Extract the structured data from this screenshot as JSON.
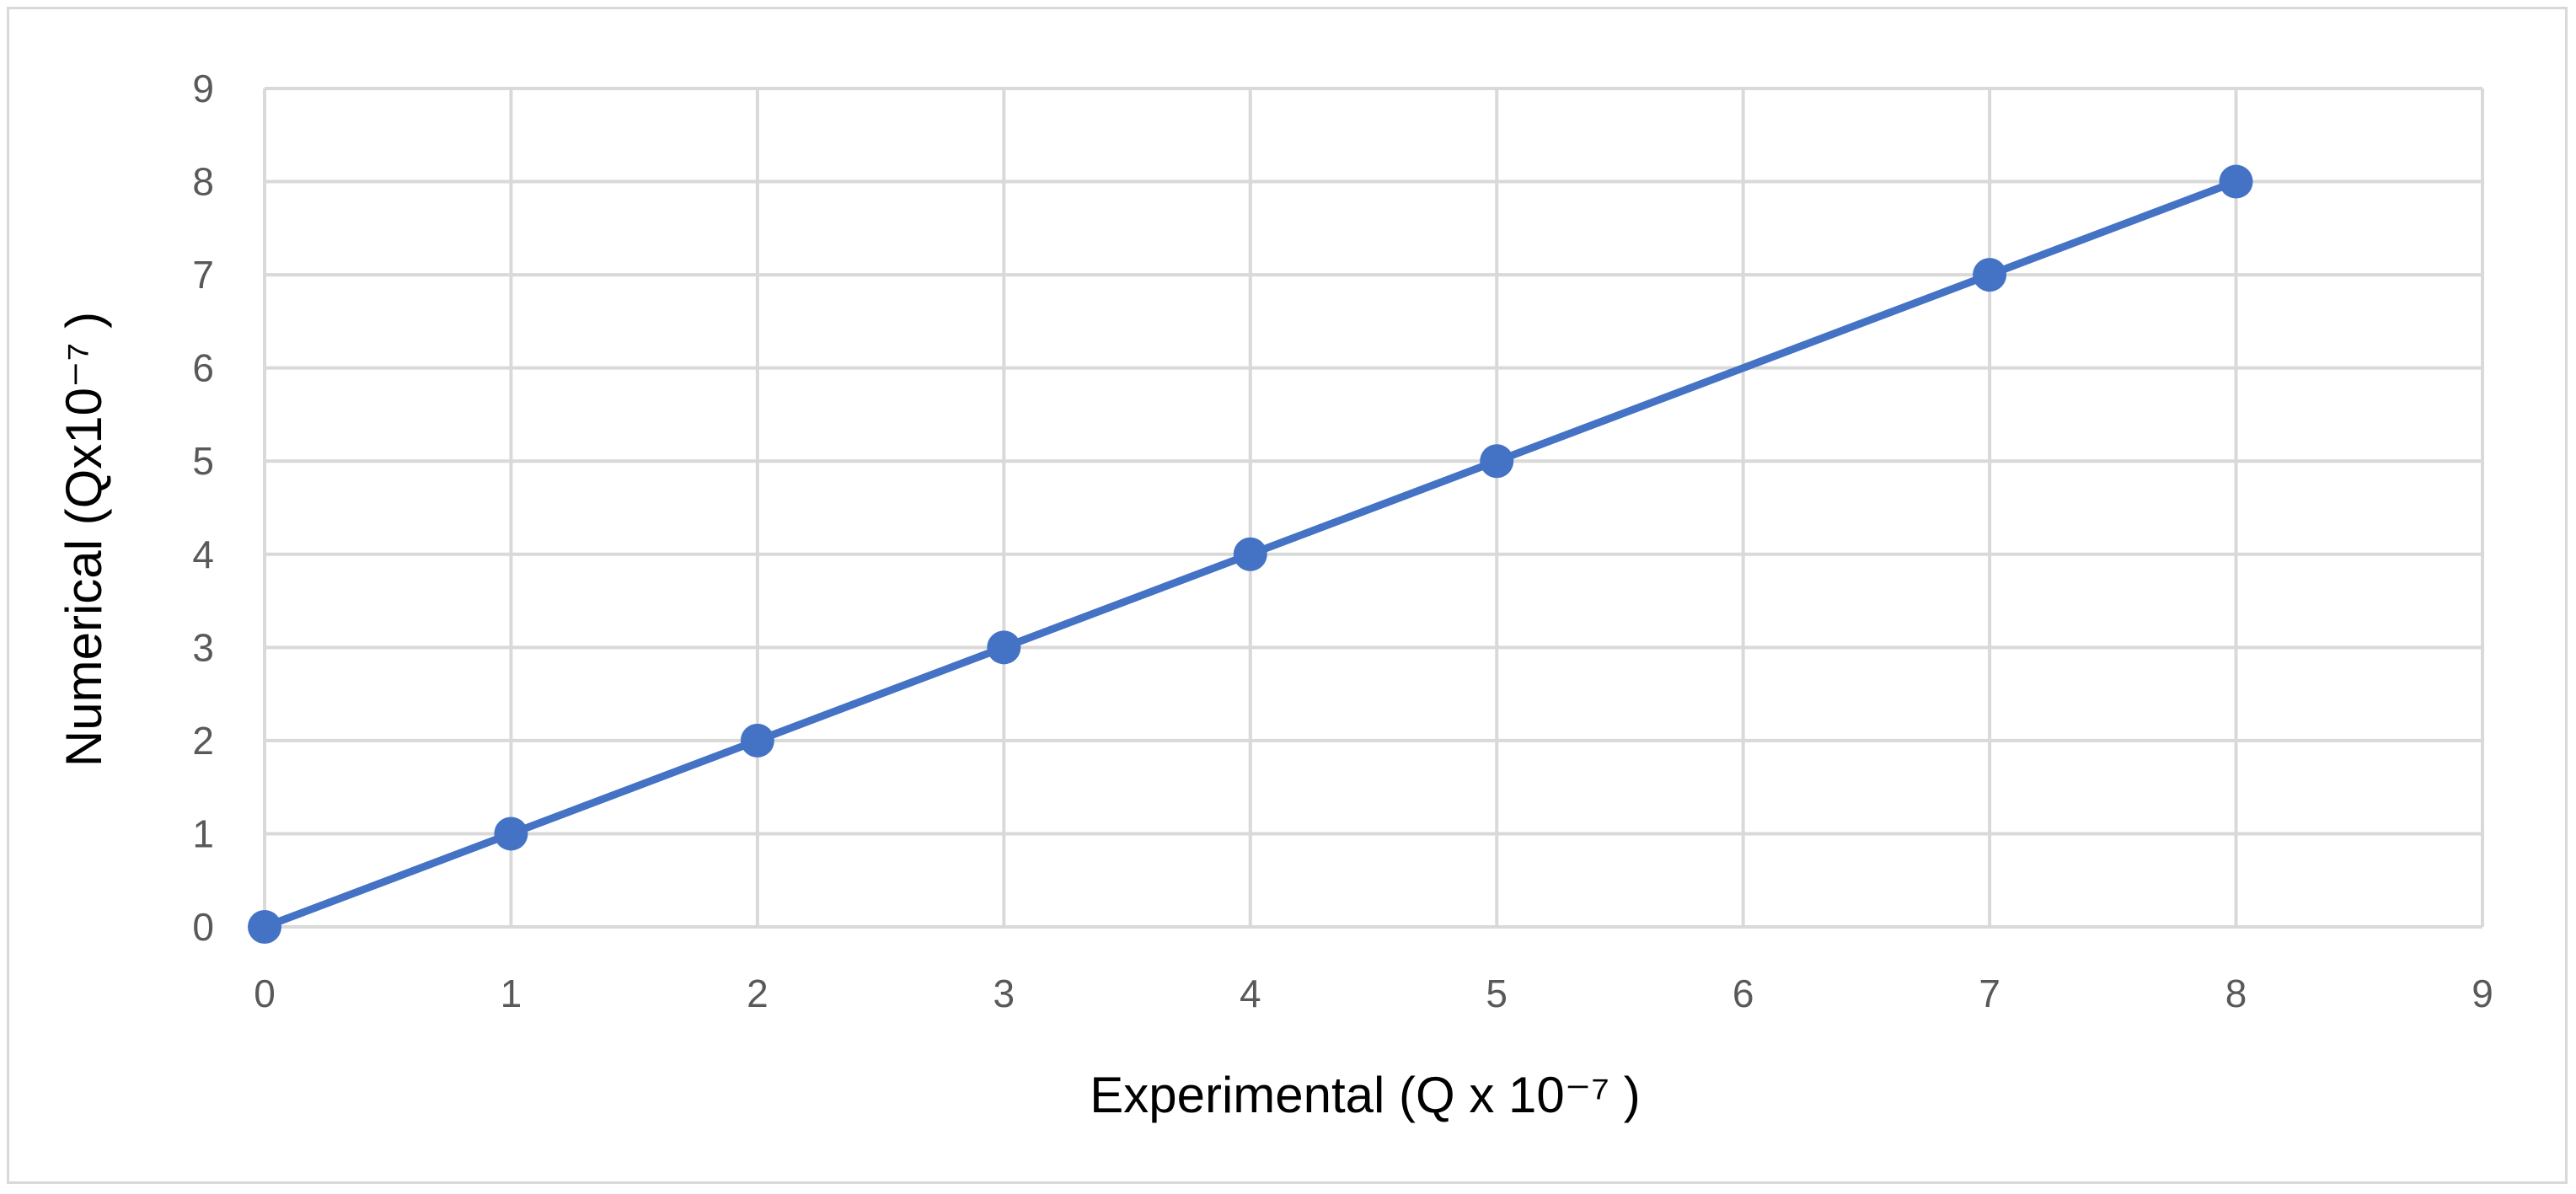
{
  "chart_data": {
    "type": "line",
    "xlabel": "Experimental (Q x 10⁻⁷ )",
    "ylabel": "Numerical  (Qx10⁻⁷ )",
    "xlim": [
      0,
      9
    ],
    "ylim": [
      0,
      9
    ],
    "x_ticks": [
      "0",
      "1",
      "2",
      "3",
      "4",
      "5",
      "6",
      "7",
      "8",
      "9"
    ],
    "y_ticks": [
      "0",
      "1",
      "2",
      "3",
      "4",
      "5",
      "6",
      "7",
      "8",
      "9"
    ],
    "grid": true,
    "legend": "none",
    "series": [
      {
        "x": [
          0,
          1,
          2,
          3,
          4,
          5,
          7,
          8
        ],
        "y": [
          0,
          1,
          2,
          3,
          4,
          5,
          7,
          8
        ]
      }
    ],
    "colors": {
      "series": "#4472c4",
      "grid": "#d9d9d9",
      "tick_text": "#595959",
      "title_text": "#000000"
    }
  }
}
